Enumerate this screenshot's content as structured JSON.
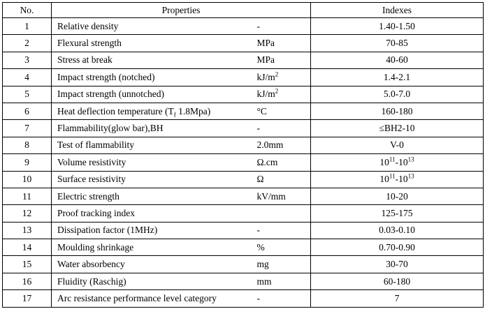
{
  "table": {
    "header": [
      "No.",
      "Properties",
      "Indexes"
    ],
    "rows": [
      [
        "1",
        "Relative density",
        "-",
        "1.40-1.50"
      ],
      [
        "2",
        "Flexural strength",
        "MPa",
        "70-85"
      ],
      [
        "3",
        "Stress at break",
        "MPa",
        "40-60"
      ],
      [
        "4",
        "Impact strength (notched)",
        [
          {
            "text": "kJ/m"
          },
          {
            "sup": "2"
          }
        ],
        "1.4-2.1"
      ],
      [
        "5",
        "Impact strength (unnotched)",
        [
          {
            "text": "kJ/m"
          },
          {
            "sup": "2"
          }
        ],
        "5.0-7.0"
      ],
      [
        "6",
        [
          {
            "text": "Heat deflection temperature (T"
          },
          {
            "sub": "f"
          },
          {
            "text": " 1.8Mpa)"
          }
        ],
        "°C",
        "160-180"
      ],
      [
        "7",
        "Flammability(glow bar),BH",
        "-",
        "≤BH2-10"
      ],
      [
        "8",
        "Test of flammability",
        "2.0mm",
        "V-0"
      ],
      [
        "9",
        "Volume resistivity",
        "Ω.cm",
        [
          {
            "text": "10"
          },
          {
            "sup": "11"
          },
          {
            "text": "-10"
          },
          {
            "sup": "13"
          }
        ]
      ],
      [
        "10",
        "Surface resistivity",
        "Ω",
        [
          {
            "text": "10"
          },
          {
            "sup": "11"
          },
          {
            "text": "-10"
          },
          {
            "sup": "13"
          }
        ]
      ],
      [
        "11",
        "Electric strength",
        "kV/mm",
        "10-20"
      ],
      [
        "12",
        "Proof tracking index",
        null,
        "125-175"
      ],
      [
        "13",
        "Dissipation factor (1MHz)",
        "-",
        "0.03-0.10"
      ],
      [
        "14",
        "Moulding shrinkage",
        "%",
        "0.70-0.90"
      ],
      [
        "15",
        "Water absorbency",
        "mg",
        "30-70"
      ],
      [
        "16",
        "Fluidity (Raschig)",
        "mm",
        "60-180"
      ],
      [
        "17",
        "Arc resistance performance level category",
        "-",
        "7"
      ]
    ]
  }
}
